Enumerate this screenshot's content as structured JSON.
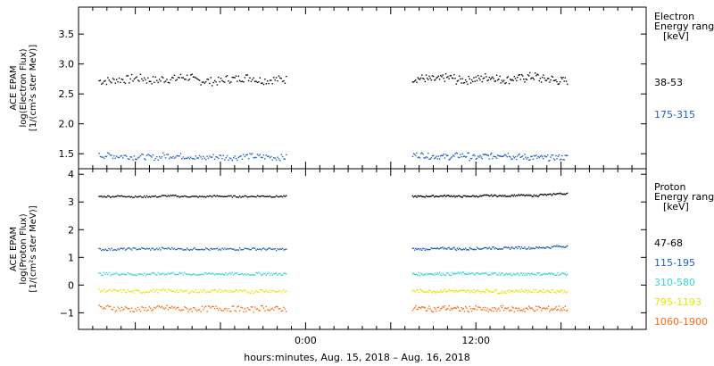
{
  "chart_data": [
    {
      "type": "scatter",
      "ylabel_lines": [
        "ACE EPAM",
        "log(Electron Flux)",
        "[1/(cm²s ster MeV)]"
      ],
      "legend_title_lines": [
        "Electron",
        "Energy range",
        "[keV]"
      ],
      "ylim": [
        1.25,
        3.95
      ],
      "yticks": [
        1.5,
        2.0,
        2.5,
        3.0,
        3.5
      ],
      "ytick_labels": [
        "1.5",
        "2.0",
        "2.5",
        "3.0",
        "3.5"
      ],
      "series": [
        {
          "name": "38-53",
          "color": "#000000",
          "mean": 2.74,
          "spread": 0.07,
          "segments": [
            {
              "start": -14.6,
              "end": -1.4,
              "values": [
                2.72,
                2.74,
                2.76,
                2.73,
                2.75,
                2.78,
                2.72,
                2.71,
                2.75,
                2.77,
                2.73,
                2.74
              ]
            },
            {
              "start": 7.5,
              "end": 18.4,
              "values": [
                2.76,
                2.74,
                2.77,
                2.73,
                2.75,
                2.78,
                2.74,
                2.76,
                2.79,
                2.75,
                2.72
              ]
            }
          ]
        },
        {
          "name": "175-315",
          "color": "#1f5fbf",
          "mean": 1.45,
          "spread": 0.05,
          "segments": [
            {
              "start": -14.6,
              "end": -1.4,
              "values": [
                1.47,
                1.46,
                1.45,
                1.44,
                1.47,
                1.46,
                1.43,
                1.45,
                1.44,
                1.46,
                1.45,
                1.44
              ]
            },
            {
              "start": 7.5,
              "end": 18.4,
              "values": [
                1.48,
                1.46,
                1.45,
                1.47,
                1.44,
                1.46,
                1.49,
                1.45,
                1.44,
                1.43,
                1.44
              ]
            }
          ]
        }
      ]
    },
    {
      "type": "scatter",
      "ylabel_lines": [
        "ACE EPAM",
        "log(Proton Flux)",
        "[1/(cm²s ster MeV)]"
      ],
      "legend_title_lines": [
        "Proton",
        "Energy range",
        "[keV]"
      ],
      "ylim": [
        -1.6,
        4.2
      ],
      "yticks": [
        -1,
        0,
        1,
        2,
        3,
        4
      ],
      "ytick_labels": [
        "−1",
        "0",
        "1",
        "2",
        "3",
        "4"
      ],
      "series": [
        {
          "name": "47-68",
          "color": "#000000",
          "mean": 3.2,
          "spread": 0.03,
          "segments": [
            {
              "start": -14.6,
              "end": -1.4,
              "values": [
                3.2,
                3.21,
                3.19,
                3.2,
                3.22,
                3.2,
                3.19,
                3.21,
                3.2,
                3.2,
                3.21,
                3.2
              ]
            },
            {
              "start": 7.5,
              "end": 18.4,
              "values": [
                3.2,
                3.21,
                3.22,
                3.2,
                3.21,
                3.23,
                3.22,
                3.24,
                3.23,
                3.26,
                3.3
              ]
            }
          ]
        },
        {
          "name": "115-195",
          "color": "#1f5fbf",
          "mean": 1.3,
          "spread": 0.04,
          "segments": [
            {
              "start": -14.6,
              "end": -1.4,
              "values": [
                1.29,
                1.3,
                1.31,
                1.3,
                1.32,
                1.3,
                1.31,
                1.29,
                1.3,
                1.31,
                1.3,
                1.29
              ]
            },
            {
              "start": 7.5,
              "end": 18.4,
              "values": [
                1.3,
                1.31,
                1.33,
                1.3,
                1.32,
                1.34,
                1.33,
                1.35,
                1.34,
                1.36,
                1.4
              ]
            }
          ]
        },
        {
          "name": "310-580",
          "color": "#33d6d6",
          "mean": 0.4,
          "spread": 0.05,
          "segments": [
            {
              "start": -14.6,
              "end": -1.4,
              "values": [
                0.4,
                0.41,
                0.39,
                0.4,
                0.42,
                0.4,
                0.39,
                0.41,
                0.4,
                0.4,
                0.41,
                0.4
              ]
            },
            {
              "start": 7.5,
              "end": 18.4,
              "values": [
                0.4,
                0.41,
                0.4,
                0.42,
                0.4,
                0.41,
                0.4,
                0.39,
                0.41,
                0.4,
                0.4
              ]
            }
          ]
        },
        {
          "name": "795-1193",
          "color": "#e6e600",
          "mean": -0.22,
          "spread": 0.06,
          "segments": [
            {
              "start": -14.6,
              "end": -1.4,
              "values": [
                -0.2,
                -0.22,
                -0.24,
                -0.21,
                -0.2,
                -0.23,
                -0.22,
                -0.21,
                -0.22,
                -0.24,
                -0.2,
                -0.22
              ]
            },
            {
              "start": 7.5,
              "end": 18.4,
              "values": [
                -0.21,
                -0.22,
                -0.2,
                -0.23,
                -0.22,
                -0.21,
                -0.24,
                -0.2,
                -0.22,
                -0.21,
                -0.22
              ]
            }
          ]
        },
        {
          "name": "1060-1900",
          "color": "#ff6a14",
          "mean": -0.85,
          "spread": 0.1,
          "segments": [
            {
              "start": -14.6,
              "end": -1.4,
              "values": [
                -0.82,
                -0.85,
                -0.88,
                -0.84,
                -0.83,
                -0.87,
                -0.86,
                -0.84,
                -0.85,
                -0.88,
                -0.83,
                -0.86
              ]
            },
            {
              "start": 7.5,
              "end": 18.4,
              "values": [
                -0.84,
                -0.86,
                -0.83,
                -0.87,
                -0.85,
                -0.9,
                -0.84,
                -0.88,
                -0.85,
                -0.86,
                -0.84
              ]
            }
          ]
        }
      ]
    }
  ],
  "x_axis": {
    "range_hours": [
      -16.0,
      24.0
    ],
    "ticks": [
      0,
      12
    ],
    "tick_labels": [
      "0:00",
      "12:00"
    ],
    "label": "hours:minutes, Aug. 15, 2018 – Aug. 16, 2018"
  }
}
